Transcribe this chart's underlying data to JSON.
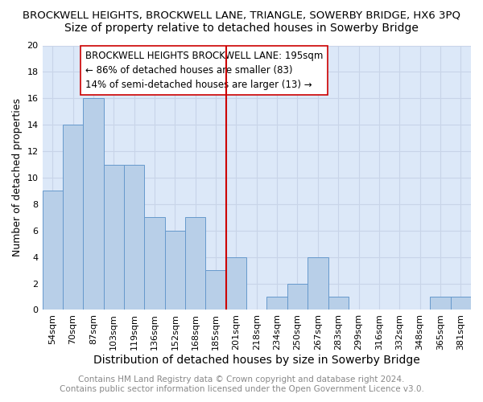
{
  "title": "BROCKWELL HEIGHTS, BROCKWELL LANE, TRIANGLE, SOWERBY BRIDGE, HX6 3PQ",
  "subtitle": "Size of property relative to detached houses in Sowerby Bridge",
  "xlabel": "Distribution of detached houses by size in Sowerby Bridge",
  "ylabel": "Number of detached properties",
  "categories": [
    "54sqm",
    "70sqm",
    "87sqm",
    "103sqm",
    "119sqm",
    "136sqm",
    "152sqm",
    "168sqm",
    "185sqm",
    "201sqm",
    "218sqm",
    "234sqm",
    "250sqm",
    "267sqm",
    "283sqm",
    "299sqm",
    "316sqm",
    "332sqm",
    "348sqm",
    "365sqm",
    "381sqm"
  ],
  "values": [
    9,
    14,
    16,
    11,
    11,
    7,
    6,
    7,
    3,
    4,
    0,
    1,
    2,
    4,
    1,
    0,
    0,
    0,
    0,
    1,
    1
  ],
  "bar_color": "#b8cfe8",
  "bar_edgecolor": "#6699cc",
  "bar_linewidth": 0.7,
  "reference_line_x": 9.0,
  "reference_line_color": "#cc0000",
  "annotation_title": "BROCKWELL HEIGHTS BROCKWELL LANE: 195sqm",
  "annotation_line1": "← 86% of detached houses are smaller (83)",
  "annotation_line2": "14% of semi-detached houses are larger (13) →",
  "ylim": [
    0,
    20
  ],
  "yticks": [
    0,
    2,
    4,
    6,
    8,
    10,
    12,
    14,
    16,
    18,
    20
  ],
  "grid_color": "#c8d4e8",
  "background_color": "#dce8f8",
  "footer_line1": "Contains HM Land Registry data © Crown copyright and database right 2024.",
  "footer_line2": "Contains public sector information licensed under the Open Government Licence v3.0.",
  "title_fontsize": 9.5,
  "subtitle_fontsize": 10,
  "xlabel_fontsize": 10,
  "ylabel_fontsize": 9,
  "tick_fontsize": 8,
  "annotation_fontsize": 8.5,
  "footer_fontsize": 7.5
}
